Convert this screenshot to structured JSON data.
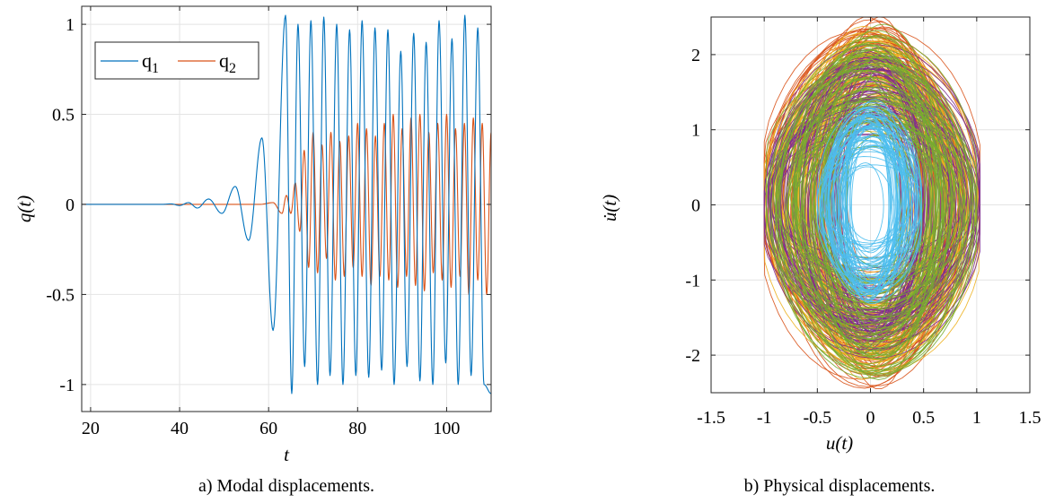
{
  "chart_data": [
    {
      "type": "line",
      "caption": "a) Modal displacements.",
      "xlabel": "t",
      "ylabel": "q(t)",
      "xlim": [
        18,
        110
      ],
      "ylim": [
        -1.15,
        1.1
      ],
      "xticks": [
        20,
        40,
        60,
        80,
        100
      ],
      "xtick_labels": [
        "20",
        "40",
        "60",
        "80",
        "100"
      ],
      "yticks": [
        -1,
        -0.5,
        0,
        0.5,
        1
      ],
      "ytick_labels": [
        "-1",
        "-0.5",
        "0",
        "0.5",
        "1"
      ],
      "grid": true,
      "legend_position": "top-left",
      "series": [
        {
          "name": "q1",
          "label_main": "q",
          "label_sub": "1",
          "color": "#0072BD",
          "x": [
            18,
            36,
            38,
            40,
            42,
            44,
            46.5,
            49.5,
            52.5,
            55.5,
            58.5,
            61,
            63.8,
            65.2,
            66.6,
            68.1,
            69.5,
            71,
            72.4,
            73.8,
            75.3,
            76.7,
            78.2,
            79.6,
            81,
            82.5,
            83.9,
            85.4,
            86.8,
            88.2,
            89.7,
            91.1,
            92.6,
            94,
            95.4,
            96.9,
            98.3,
            99.8,
            101.2,
            102.6,
            104.1,
            105.5,
            107,
            108.4,
            110
          ],
          "values": [
            0,
            0,
            0.003,
            -0.006,
            0.01,
            -0.02,
            0.03,
            -0.05,
            0.1,
            -0.2,
            0.37,
            -0.7,
            1.05,
            -1.05,
            1.0,
            -0.9,
            1.02,
            -1.0,
            1.04,
            -0.95,
            1.0,
            -1.0,
            0.97,
            -0.95,
            1.02,
            -0.96,
            0.98,
            -0.92,
            0.97,
            -1.0,
            0.85,
            -0.9,
            0.95,
            -0.98,
            0.9,
            -1.0,
            1.02,
            -0.88,
            0.92,
            -1.0,
            1.05,
            -0.95,
            0.98,
            -1.0,
            -1.05
          ]
        },
        {
          "name": "q2",
          "label_main": "q",
          "label_sub": "2",
          "color": "#D95319",
          "x": [
            18,
            58,
            61,
            63,
            64,
            65,
            66,
            67,
            68,
            69,
            70,
            71,
            72,
            73,
            74,
            75,
            76,
            77,
            78,
            79,
            80,
            81,
            82,
            83,
            84,
            85,
            86,
            87,
            88,
            89,
            90,
            91,
            92,
            93,
            94,
            95,
            96,
            97,
            98,
            99,
            100,
            101,
            102,
            103,
            104,
            105,
            106,
            107,
            108,
            109,
            110
          ],
          "values": [
            0,
            0,
            0.01,
            -0.05,
            0.05,
            -0.05,
            0.12,
            -0.15,
            0.3,
            -0.35,
            0.4,
            -0.38,
            0.33,
            -0.3,
            0.4,
            -0.42,
            0.35,
            -0.4,
            0.38,
            -0.35,
            0.45,
            -0.4,
            0.42,
            -0.45,
            0.38,
            -0.4,
            0.45,
            -0.42,
            0.5,
            -0.46,
            0.42,
            -0.4,
            0.48,
            -0.45,
            0.5,
            -0.48,
            0.4,
            -0.38,
            0.45,
            -0.42,
            0.5,
            -0.46,
            0.42,
            -0.4,
            0.45,
            -0.5,
            0.48,
            -0.42,
            0.45,
            -0.5,
            0.4
          ]
        }
      ]
    },
    {
      "type": "scatter",
      "subtype": "phase-portrait",
      "caption": "b) Physical displacements.",
      "xlabel": "u(t)",
      "ylabel": "u̇(t)",
      "xlim": [
        -1.5,
        1.5
      ],
      "ylim": [
        -2.5,
        2.5
      ],
      "xticks": [
        -1.5,
        -1,
        -0.5,
        0,
        0.5,
        1,
        1.5
      ],
      "xtick_labels": [
        "-1.5",
        "-1",
        "-0.5",
        "0",
        "0.5",
        "1",
        "1.5"
      ],
      "yticks": [
        -2,
        -1,
        0,
        1,
        2
      ],
      "ytick_labels": [
        "-2",
        "-1",
        "0",
        "1",
        "2"
      ],
      "grid": true,
      "series": [
        {
          "color": "#D95319",
          "u_range": [
            -1.0,
            1.03
          ],
          "v_range": [
            -2.3,
            2.37
          ]
        },
        {
          "color": "#EDB120",
          "u_range": [
            -1.0,
            1.02
          ],
          "v_range": [
            -2.15,
            2.25
          ]
        },
        {
          "color": "#7E2F8E",
          "u_range": [
            -1.0,
            1.03
          ],
          "v_range": [
            -1.9,
            2.0
          ]
        },
        {
          "color": "#77AC30",
          "u_range": [
            -0.98,
            1.0
          ],
          "v_range": [
            -2.2,
            2.25
          ]
        },
        {
          "color": "#4DBEEE",
          "u_range": [
            -0.5,
            0.48
          ],
          "v_range": [
            -1.25,
            1.35
          ]
        }
      ]
    }
  ]
}
